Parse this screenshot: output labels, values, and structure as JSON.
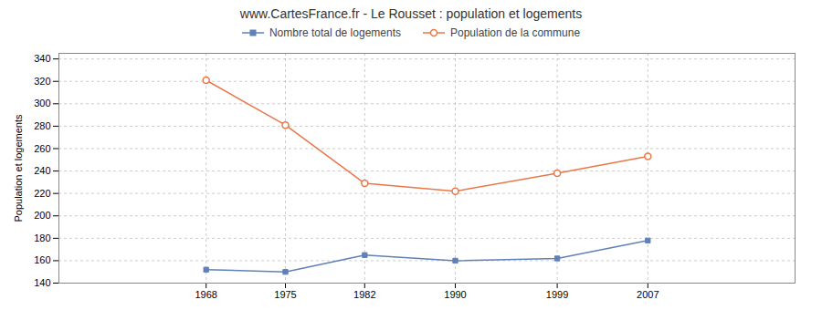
{
  "chart_data": {
    "type": "line",
    "title": "www.CartesFrance.fr - Le Rousset : population et logements",
    "ylabel": "Population et logements",
    "x": [
      1968,
      1975,
      1982,
      1990,
      1999,
      2007
    ],
    "series": [
      {
        "name": "Nombre total de logements",
        "color": "#6080b8",
        "marker": "square",
        "values": [
          152,
          150,
          165,
          160,
          162,
          178
        ]
      },
      {
        "name": "Population de la commune",
        "color": "#e8784a",
        "marker": "circle",
        "values": [
          321,
          281,
          229,
          222,
          238,
          253
        ]
      }
    ],
    "xlim": [
      1955,
      2020
    ],
    "xticks": [
      1968,
      1975,
      1982,
      1990,
      1999,
      2007
    ],
    "ylim": [
      140,
      345
    ],
    "yticks": [
      140,
      160,
      180,
      200,
      220,
      240,
      260,
      280,
      300,
      320,
      340
    ],
    "grid": true,
    "legend": "top"
  }
}
